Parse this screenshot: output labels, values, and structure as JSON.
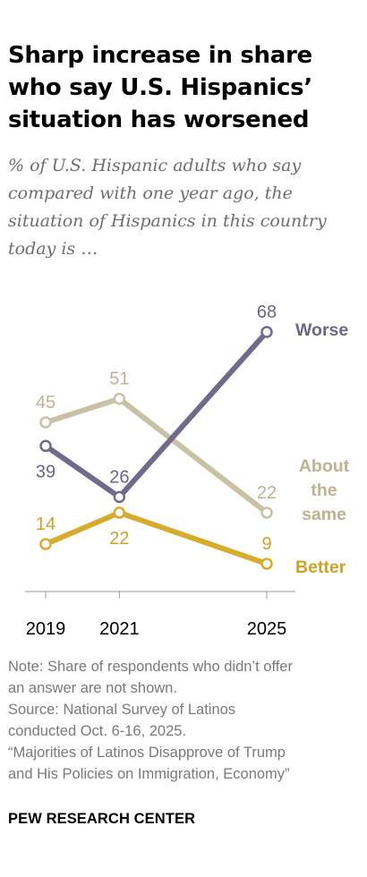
{
  "title": "Sharp increase in share who say U.S. Hispanics’ situation has worsened",
  "subtitle": "% of U.S. Hispanic adults who say compared with one year ago, the situation of Hispanics in this country today is …",
  "note_lines": [
    "Note: Share of respondents who didn’t offer",
    "an answer are not shown.",
    "Source: National Survey of Latinos",
    "conducted Oct. 6-16, 2025.",
    "“Majorities of Latinos Disapprove of Trump",
    "and His Policies on Immigration, Economy”"
  ],
  "brand": "PEW RESEARCH CENTER",
  "chart_data": {
    "type": "line",
    "x": [
      2019,
      2021,
      2025
    ],
    "x_tick_labels": [
      "2019",
      "2021",
      "2025"
    ],
    "ylim": [
      0,
      80
    ],
    "grid": false,
    "legend": "direct labels at line ends (right)",
    "series": [
      {
        "name": "About the same",
        "label_lines": [
          "About",
          "the",
          "same"
        ],
        "values": [
          45,
          51,
          22
        ],
        "value_labels": [
          "45",
          "51",
          "22"
        ],
        "color": "#c9c1a3",
        "label_color": "#bcb390"
      },
      {
        "name": "Worse",
        "label_lines": [
          "Worse"
        ],
        "values": [
          39,
          26,
          68
        ],
        "value_labels": [
          "39",
          "26",
          "68"
        ],
        "color": "#716a8a",
        "label_color": "#6c6585"
      },
      {
        "name": "Better",
        "label_lines": [
          "Better"
        ],
        "values": [
          14,
          22,
          9
        ],
        "value_labels": [
          "14",
          "22",
          "9"
        ],
        "color": "#d7ab2e",
        "label_color": "#cea22a"
      }
    ]
  }
}
